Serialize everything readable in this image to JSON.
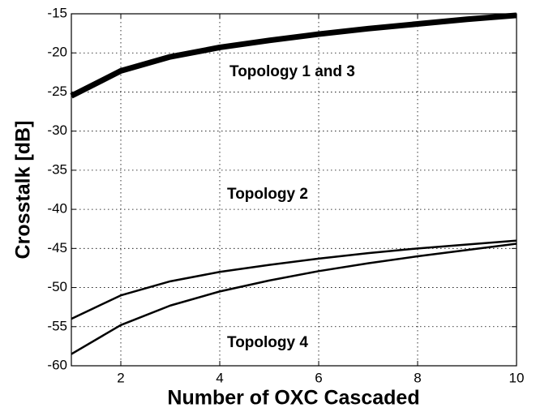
{
  "chart_data": {
    "type": "line",
    "xlabel": "Number of OXC Cascaded",
    "ylabel": "Crosstalk [dB]",
    "x": [
      1,
      2,
      3,
      4,
      5,
      6,
      7,
      8,
      9,
      10
    ],
    "series": [
      {
        "name": "Topology 1 and 3",
        "color": "#000000",
        "width": 7,
        "values": [
          -25.5,
          -22.3,
          -20.5,
          -19.3,
          -18.4,
          -17.6,
          -16.9,
          -16.3,
          -15.7,
          -15.2
        ]
      },
      {
        "name": "Topology 2",
        "color": "#000000",
        "width": 2.5,
        "values": [
          -54,
          -51,
          -49.2,
          -48,
          -47.1,
          -46.3,
          -45.6,
          -45,
          -44.5,
          -44
        ]
      },
      {
        "name": "Topology 4",
        "color": "#000000",
        "width": 2.5,
        "values": [
          -58.5,
          -54.8,
          -52.3,
          -50.5,
          -49.1,
          -47.9,
          -46.9,
          -46,
          -45.2,
          -44.4
        ]
      }
    ],
    "xlim": [
      1,
      10
    ],
    "xticks": [
      2,
      4,
      6,
      8,
      10
    ],
    "ylim": [
      -60,
      -15
    ],
    "yticks": [
      -60,
      -55,
      -50,
      -45,
      -40,
      -35,
      -30,
      -25,
      -20,
      -15
    ],
    "grid": true
  }
}
